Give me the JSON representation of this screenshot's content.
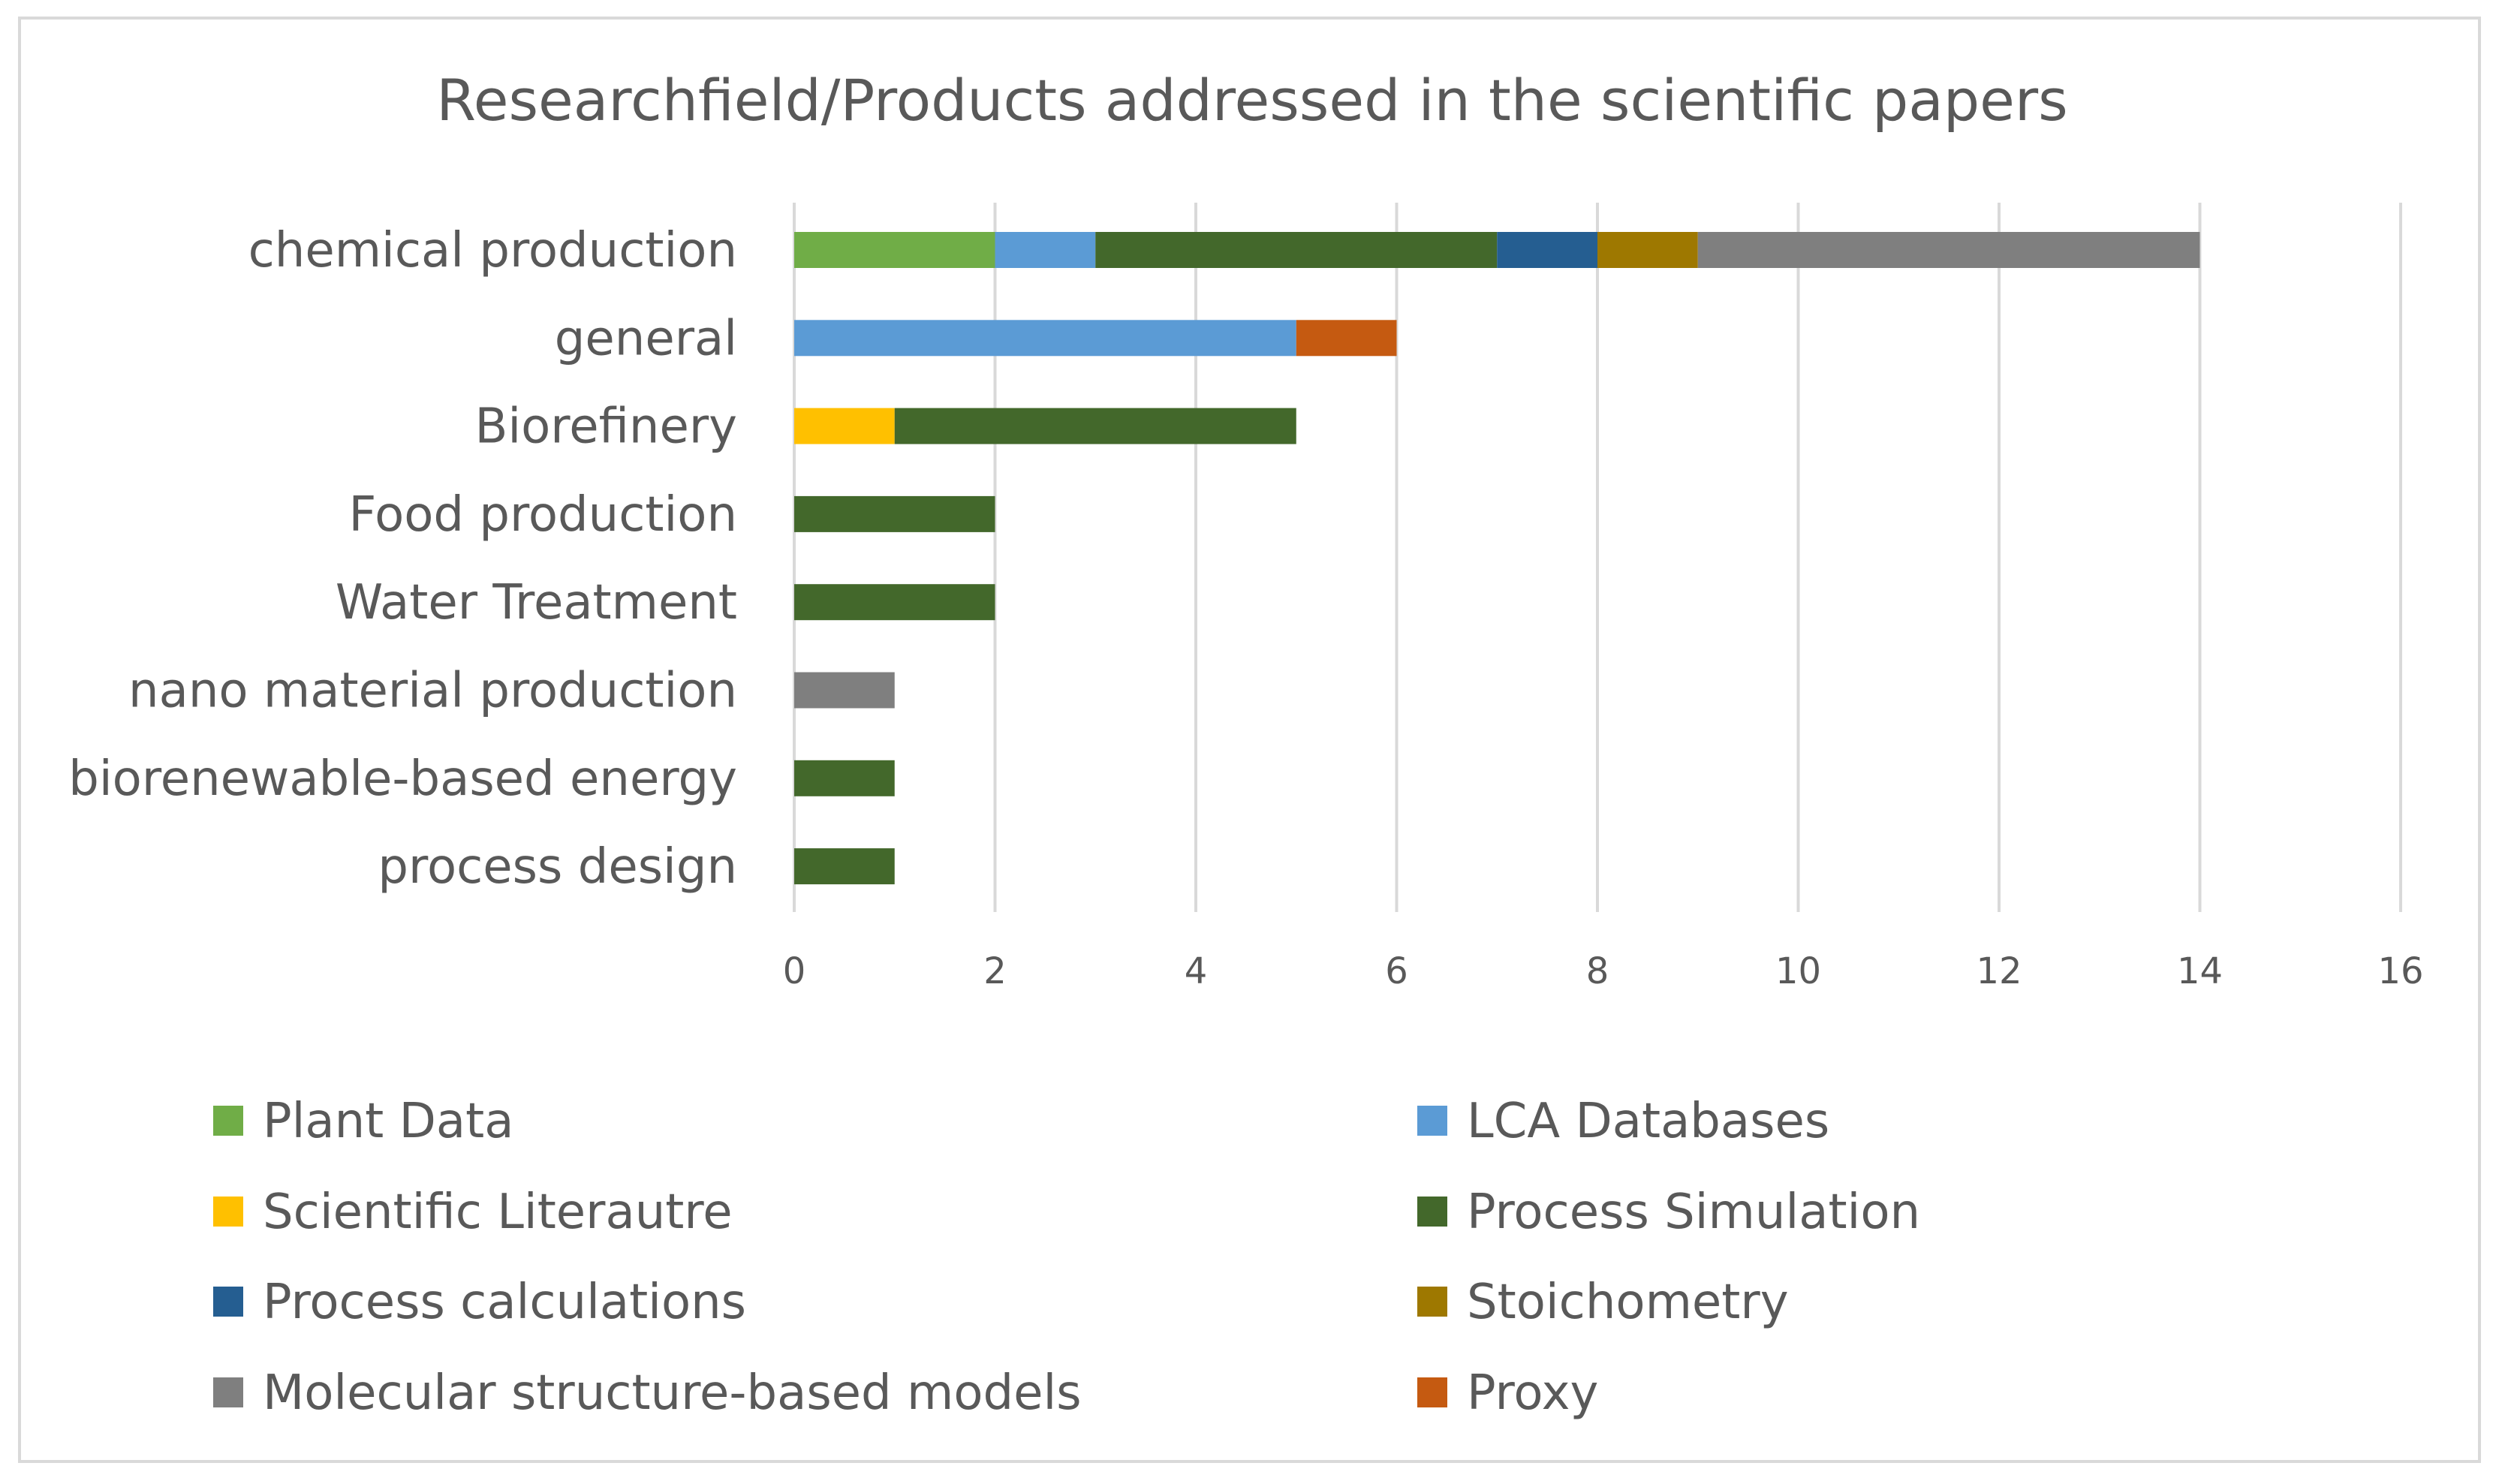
{
  "chart_data": {
    "type": "bar",
    "orientation": "horizontal",
    "stacked": true,
    "title": "Researchfield/Products addressed in the scientific papers",
    "categories": [
      "chemical production",
      "general",
      "Biorefinery",
      "Food production",
      "Water Treatment",
      "nano material production",
      "biorenewable-based energy",
      "process design"
    ],
    "series": [
      {
        "name": "Plant Data",
        "color": "#70ad47",
        "values": [
          2,
          0,
          0,
          0,
          0,
          0,
          0,
          0
        ]
      },
      {
        "name": "LCA Databases",
        "color": "#5b9bd5",
        "values": [
          1,
          5,
          0,
          0,
          0,
          0,
          0,
          0
        ]
      },
      {
        "name": "Scientific Literautre",
        "color": "#ffc000",
        "values": [
          0,
          0,
          1,
          0,
          0,
          0,
          0,
          0
        ]
      },
      {
        "name": "Process Simulation",
        "color": "#43682b",
        "values": [
          4,
          0,
          4,
          2,
          2,
          0,
          1,
          1
        ]
      },
      {
        "name": "Process calculations",
        "color": "#255e91",
        "values": [
          1,
          0,
          0,
          0,
          0,
          0,
          0,
          0
        ]
      },
      {
        "name": "Stoichometry",
        "color": "#9e7800",
        "values": [
          1,
          0,
          0,
          0,
          0,
          0,
          0,
          0
        ]
      },
      {
        "name": "Molecular structure-based models",
        "color": "#7f7f7f",
        "values": [
          5,
          0,
          0,
          0,
          0,
          1,
          0,
          0
        ]
      },
      {
        "name": "Proxy",
        "color": "#c55a11",
        "values": [
          0,
          1,
          0,
          0,
          0,
          0,
          0,
          0
        ]
      }
    ],
    "xlim": [
      0,
      16
    ],
    "x_ticks": [
      0,
      2,
      4,
      6,
      8,
      10,
      12,
      14,
      16
    ],
    "xlabel": "",
    "ylabel": "",
    "grid": "vertical",
    "legend": "bottom"
  }
}
